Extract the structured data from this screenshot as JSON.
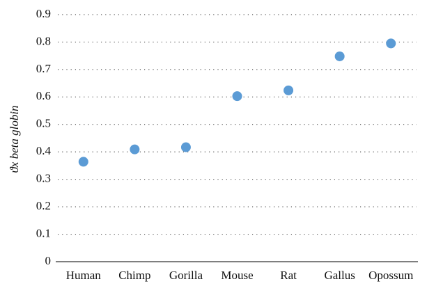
{
  "chart_data": {
    "type": "scatter",
    "y_label": "ϑx beta globin",
    "categories": [
      "Human",
      "Chimp",
      "Gorilla",
      "Mouse",
      "Rat",
      "Gallus",
      "Opossum"
    ],
    "values": [
      0.364,
      0.409,
      0.417,
      0.603,
      0.624,
      0.748,
      0.795
    ],
    "color": "#5b9bd5",
    "ylim": [
      0,
      0.9
    ],
    "yticks": [
      0,
      0.1,
      0.2,
      0.3,
      0.4,
      0.5,
      0.6,
      0.7,
      0.8,
      0.9
    ],
    "grid": true
  }
}
